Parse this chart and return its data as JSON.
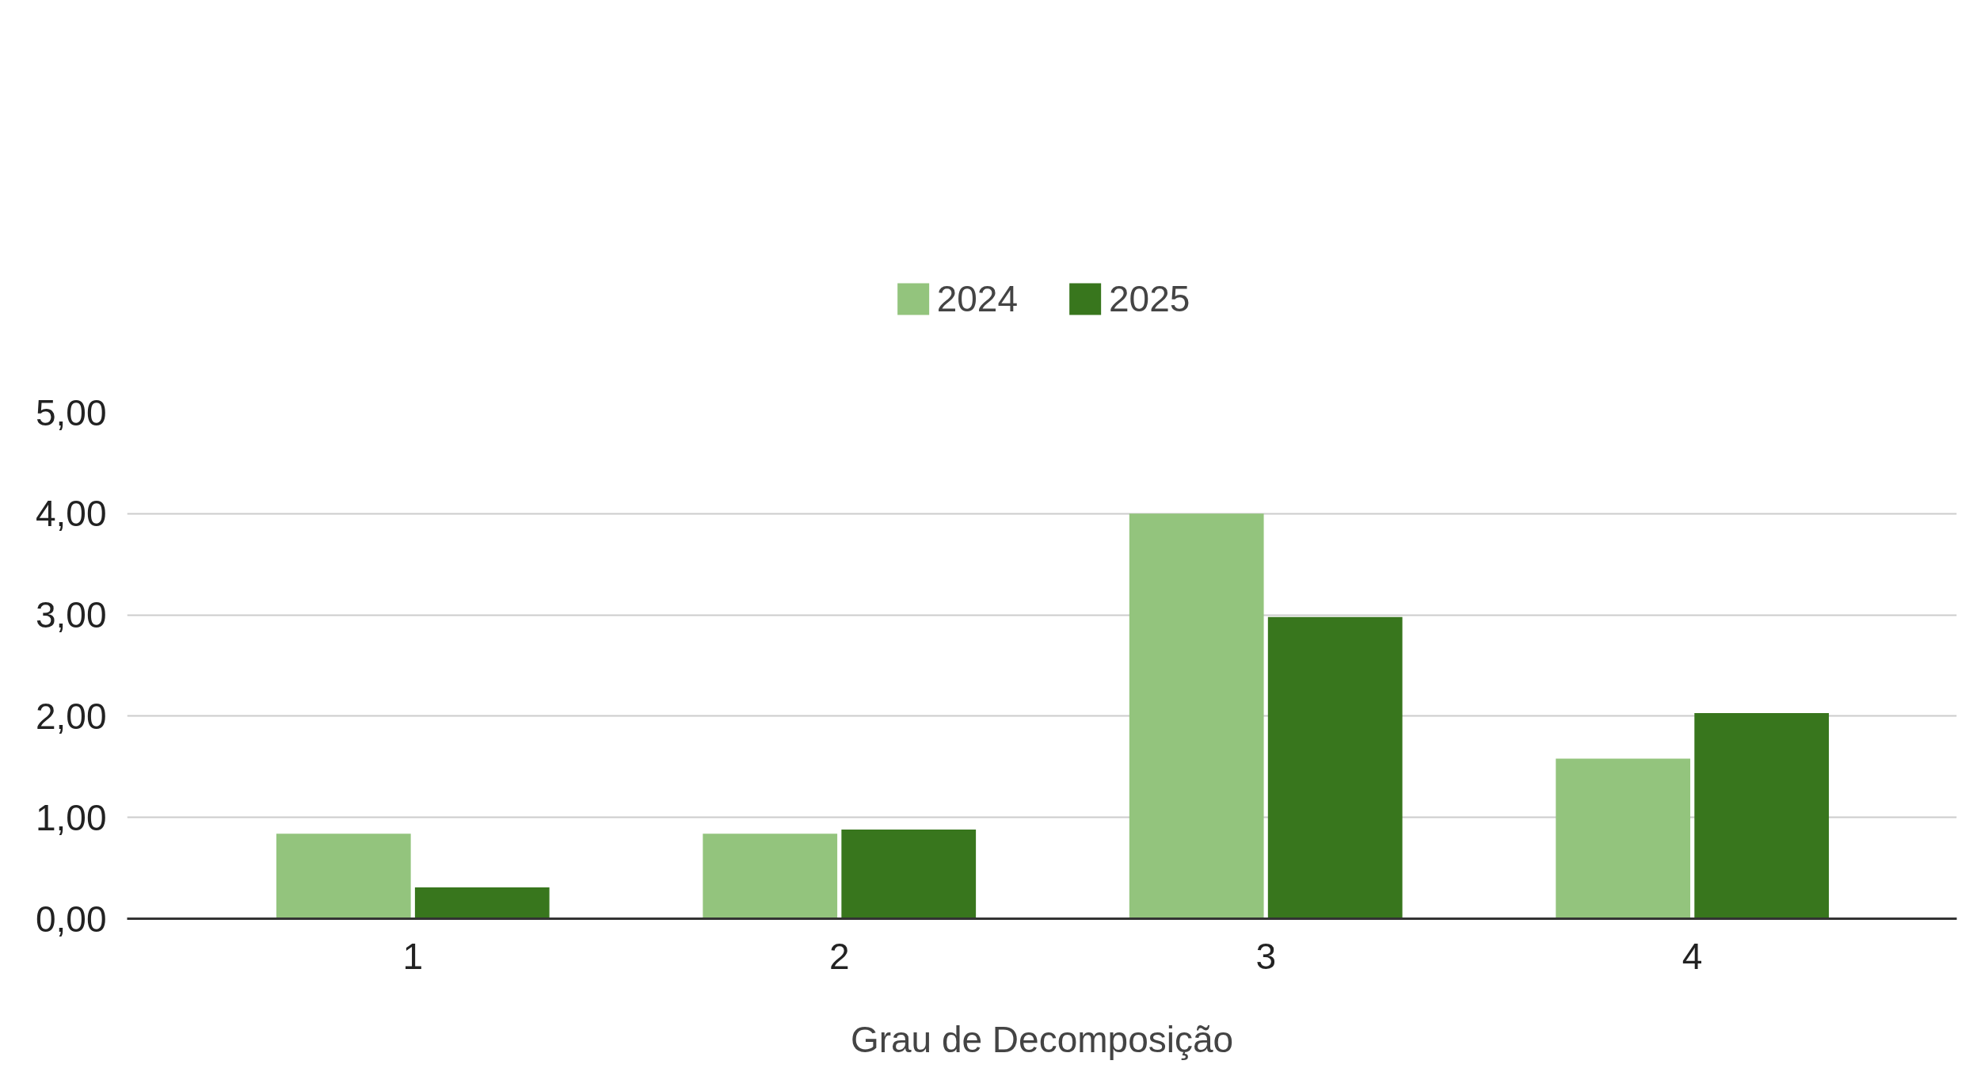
{
  "chart_data": {
    "type": "bar",
    "xlabel": "Grau de Decomposição",
    "categories": [
      "1",
      "2",
      "3",
      "4"
    ],
    "series": [
      {
        "name": "2024",
        "color": "#93c47d",
        "values": [
          0.84,
          0.84,
          4.0,
          1.58
        ]
      },
      {
        "name": "2025",
        "color": "#38761d",
        "values": [
          0.31,
          0.88,
          2.98,
          2.03
        ]
      }
    ],
    "ylim": [
      0,
      5
    ],
    "yticks": [
      {
        "value": 0,
        "label": "0,00"
      },
      {
        "value": 1,
        "label": "1,00"
      },
      {
        "value": 2,
        "label": "2,00"
      },
      {
        "value": 3,
        "label": "3,00"
      },
      {
        "value": 4,
        "label": "4,00"
      },
      {
        "value": 5,
        "label": "5,00"
      }
    ],
    "grid": "y",
    "legend": "top"
  }
}
